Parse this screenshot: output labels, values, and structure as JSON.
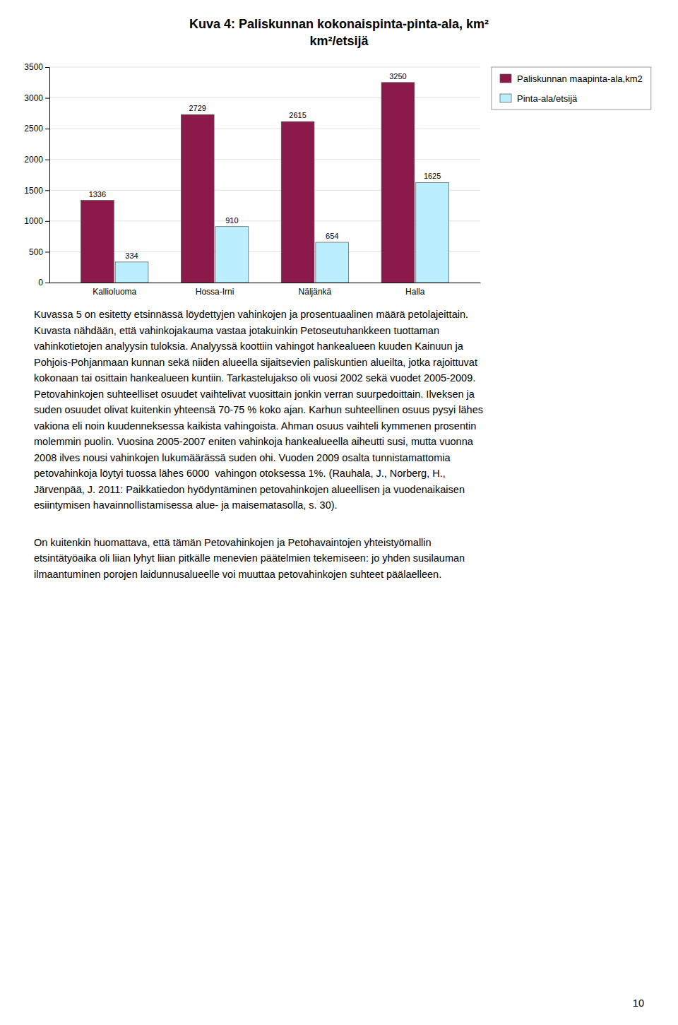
{
  "chart_data": {
    "type": "bar",
    "title": "Kuva 4: Paliskunnan kokonaispinta-pinta-ala, km²",
    "subtitle": "km²/etsijä",
    "categories": [
      "Kallioluoma",
      "Hossa-Irni",
      "Näljänkä",
      "Halla"
    ],
    "series": [
      {
        "name": "Paliskunnan maapinta-ala,km2",
        "color": "#8B1A4A",
        "values": [
          1336,
          2729,
          2615,
          3250
        ]
      },
      {
        "name": "Pinta-ala/etsijä",
        "color": "#BBEEFF",
        "values": [
          334,
          910,
          654,
          1625
        ]
      }
    ],
    "ylim": [
      0,
      3500
    ],
    "yticks": [
      0,
      500,
      1000,
      1500,
      2000,
      2500,
      3000,
      3500
    ],
    "grid": true,
    "legend": "right",
    "data_labels": true
  },
  "paragraphs": [
    [
      "Kuvassa 5 on esitetty etsinnässä löydettyjen vahinkojen ja prosentuaalinen määrä petolajeittain.",
      "Kuvasta nähdään, että vahinkojakauma vastaa jotakuinkin Petoseutuhankkeen tuottaman",
      "vahinkotietojen analyysin tuloksia. Analyyssä koottiin vahingot hankealueen kuuden Kainuun ja",
      "Pohjois-Pohjanmaan kunnan sekä niiden alueella sijaitsevien paliskuntien alueilta, jotka rajoittuvat",
      "kokonaan tai osittain hankealueen kuntiin. Tarkastelujakso oli vuosi 2002 sekä vuodet 2005-2009.",
      "Petovahinkojen suhteelliset osuudet vaihtelivat vuosittain jonkin verran suurpedoittain. Ilveksen ja",
      "suden osuudet olivat kuitenkin yhteensä 70-75 % koko ajan. Karhun suhteellinen osuus pysyi lähes",
      "vakiona eli noin kuudenneksessa kaikista vahingoista. Ahman osuus vaihteli kymmenen prosentin",
      "molemmin puolin. Vuosina 2005-2007 eniten vahinkoja hankealueella aiheutti susi, mutta vuonna",
      "2008 ilves nousi vahinkojen lukumäärässä suden ohi. Vuoden 2009 osalta tunnistamattomia",
      "petovahinkoja löytyi tuossa lähes 6000  vahingon otoksessa 1%. (Rauhala, J., Norberg, H.,",
      "Järvenpää, J. 2011: Paikkatiedon hyödyntäminen petovahinkojen alueellisen ja vuodenaikaisen",
      "esiintymisen havainnollistamisessa alue- ja maisematasolla, s. 30)."
    ],
    [
      "On kuitenkin huomattava, että tämän Petovahinkojen ja Petohavaintojen yhteistyömallin",
      "etsintätyöaika oli liian lyhyt liian pitkälle menevien päätelmien tekemiseen: jo yhden susilauman",
      "ilmaantuminen porojen laidunnusalueelle voi muuttaa petovahinkojen suhteet päälaelleen."
    ]
  ],
  "page_number": "10"
}
